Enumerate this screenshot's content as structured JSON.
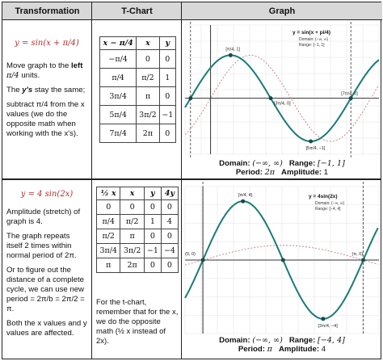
{
  "headers": {
    "transformation": "Transformation",
    "tchart": "T-Chart",
    "graph": "Graph"
  },
  "row1": {
    "equation": "y = sin(x + π/4)",
    "text1a": "Move graph to the",
    "text1b": "left",
    "text1c": "π/4",
    "text1d": "units.",
    "text2a": "The",
    "text2b": "y's",
    "text2c": "stay the same;",
    "text3": "subtract π/4 from the x values (we do the opposite math when working with the x's).",
    "tchart_headers": [
      "x − π/4",
      "x",
      "y"
    ],
    "tchart_rows": [
      [
        "−π/4",
        "0",
        "0"
      ],
      [
        "π/4",
        "π/2",
        "1"
      ],
      [
        "3π/4",
        "π",
        "0"
      ],
      [
        "5π/4",
        "3π/2",
        "−1"
      ],
      [
        "7π/4",
        "2π",
        "0"
      ]
    ],
    "domain_label": "Domain:",
    "domain_value": "(−∞, ∞)",
    "range_label": "Range:",
    "range_value": "[−1, 1]",
    "period_label": "Period:",
    "period_value": "2π",
    "amplitude_label": "Amplitude:",
    "amplitude_value": "1"
  },
  "row2": {
    "equation": "y = 4 sin(2x)",
    "text1": "Amplitude (stretch) of graph is 4.",
    "text2": "The graph repeats itself 2 times within normal period of 2π.",
    "text3": "Or to figure out the distance of a complete cycle, we can use new period = 2π/b = 2π/2 = π.",
    "text4": "Both the x values and y values are affected.",
    "tchart_headers": [
      "½ x",
      "x",
      "y",
      "4y"
    ],
    "tchart_rows": [
      [
        "0",
        "0",
        "0",
        "0"
      ],
      [
        "π/4",
        "π/2",
        "1",
        "4"
      ],
      [
        "π/2",
        "π",
        "0",
        "0"
      ],
      [
        "3π/4",
        "3π/2",
        "−1",
        "−4"
      ],
      [
        "π",
        "2π",
        "0",
        "0"
      ]
    ],
    "note": "For the t-chart, remember that for the x, we do the opposite math (½ x instead of 2x).",
    "domain_label": "Domain:",
    "domain_value": "(−∞, ∞)",
    "range_label": "Range:",
    "range_value": "[−4, 4]",
    "period_label": "Period:",
    "period_value": "π",
    "amplitude_label": "Amplitude:",
    "amplitude_value": "4"
  },
  "chart_data": [
    {
      "type": "line",
      "title": "y = sin(x + pi/4)",
      "legend": [
        "Domain: (−∞, ∞)",
        "Range: [−1, 1]"
      ],
      "series": [
        {
          "name": "y = sin(x + π/4)",
          "x": [
            -0.785,
            0.785,
            2.356,
            3.927,
            5.498
          ],
          "values": [
            0,
            1,
            0,
            -1,
            0
          ]
        },
        {
          "name": "",
          "x": [
            0,
            1.571,
            3.142,
            4.712,
            6.283
          ],
          "values": [
            0,
            1,
            0,
            -1,
            0
          ]
        }
      ],
      "point_labels": [
        "[π/4, 1]",
        "[5π/4, −1]",
        "[3π/4, 0]",
        "[7π/4, 0]"
      ],
      "colors": {
        "curve": "#1a7a7a",
        "parent": "#c98888",
        "asym": "#333333"
      }
    },
    {
      "type": "line",
      "title": "y = 4sin(2x)",
      "legend": [
        "Domain: (−∞, ∞)",
        "Range: [−4, 4]"
      ],
      "series": [
        {
          "name": "y = 4sin(2x)",
          "x": [
            0,
            0.785,
            1.571,
            2.356,
            3.142
          ],
          "values": [
            0,
            4,
            0,
            -4,
            0
          ]
        },
        {
          "name": "",
          "x": [
            0,
            1.571,
            3.142
          ],
          "values": [
            0,
            1,
            0
          ]
        }
      ],
      "point_labels": [
        "[π/4, 4]",
        "[3π/4, −4]",
        "(0, 0)",
        "(π, 0)"
      ],
      "colors": {
        "curve": "#1a7a7a",
        "parent": "#c98888",
        "asym": "#333333"
      }
    }
  ]
}
